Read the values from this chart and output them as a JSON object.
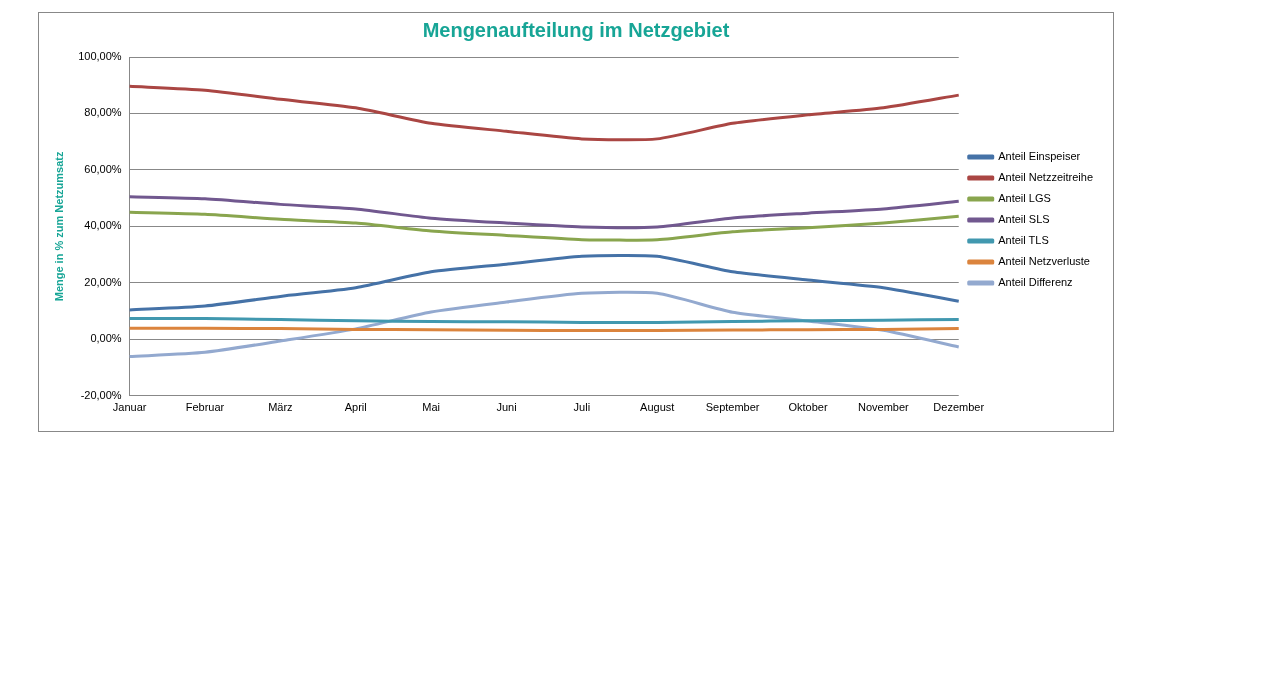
{
  "chart_data": {
    "type": "line",
    "title": "Mengenaufteilung im Netzgebiet",
    "ylabel": "Menge in % zum Netzumsatz",
    "categories": [
      "Januar",
      "Februar",
      "März",
      "April",
      "Mai",
      "Juni",
      "Juli",
      "August",
      "September",
      "Oktober",
      "November",
      "Dezember"
    ],
    "series": [
      {
        "name": "Anteil Einspeiser",
        "color": "#4572a7",
        "values": [
          10.4,
          11.8,
          15.2,
          18.3,
          23.9,
          26.6,
          29.4,
          29.4,
          23.9,
          21,
          18.3,
          13.5
        ]
      },
      {
        "name": "Anteil Netzzeitreihe",
        "color": "#aa4643",
        "values": [
          89.6,
          88.2,
          85,
          82,
          76.5,
          73.7,
          71,
          71,
          76.5,
          79.5,
          82,
          86.5
        ]
      },
      {
        "name": "Anteil LGS",
        "color": "#89a54e",
        "values": [
          45,
          44.3,
          42.5,
          41.2,
          38.4,
          36.8,
          35.3,
          35.3,
          38.1,
          39.5,
          41.2,
          43.6
        ]
      },
      {
        "name": "Anteil SLS",
        "color": "#71588f",
        "values": [
          50.5,
          49.8,
          47.8,
          46.2,
          42.9,
          41.2,
          39.8,
          39.8,
          43,
          44.7,
          46.2,
          48.9
        ]
      },
      {
        "name": "Anteil TLS",
        "color": "#4198af",
        "values": [
          7.4,
          7.4,
          7,
          6.6,
          6.3,
          6.2,
          6,
          6,
          6.3,
          6.6,
          6.8,
          7
        ]
      },
      {
        "name": "Anteil Netzverluste",
        "color": "#db843d",
        "values": [
          3.9,
          3.9,
          3.8,
          3.5,
          3.4,
          3.2,
          3.1,
          3.1,
          3.3,
          3.4,
          3.5,
          3.8
        ]
      },
      {
        "name": "Anteil Differenz",
        "color": "#93a9cf",
        "values": [
          -6.1,
          -4.6,
          -0.6,
          3.7,
          9.7,
          13.2,
          16.3,
          16.3,
          9.6,
          6.5,
          3.2,
          -2.7
        ]
      }
    ],
    "ylim": [
      -20,
      100
    ],
    "yticks": [
      {
        "value": -20,
        "label": "-20,00%"
      },
      {
        "value": 0,
        "label": "0,00%"
      },
      {
        "value": 20,
        "label": "20,00%"
      },
      {
        "value": 40,
        "label": "40,00%"
      },
      {
        "value": 60,
        "label": "60,00%"
      },
      {
        "value": 80,
        "label": "80,00%"
      },
      {
        "value": 100,
        "label": "100,00%"
      }
    ],
    "grid": "y",
    "legend": "right",
    "marker": "none",
    "line_style": "solid"
  }
}
